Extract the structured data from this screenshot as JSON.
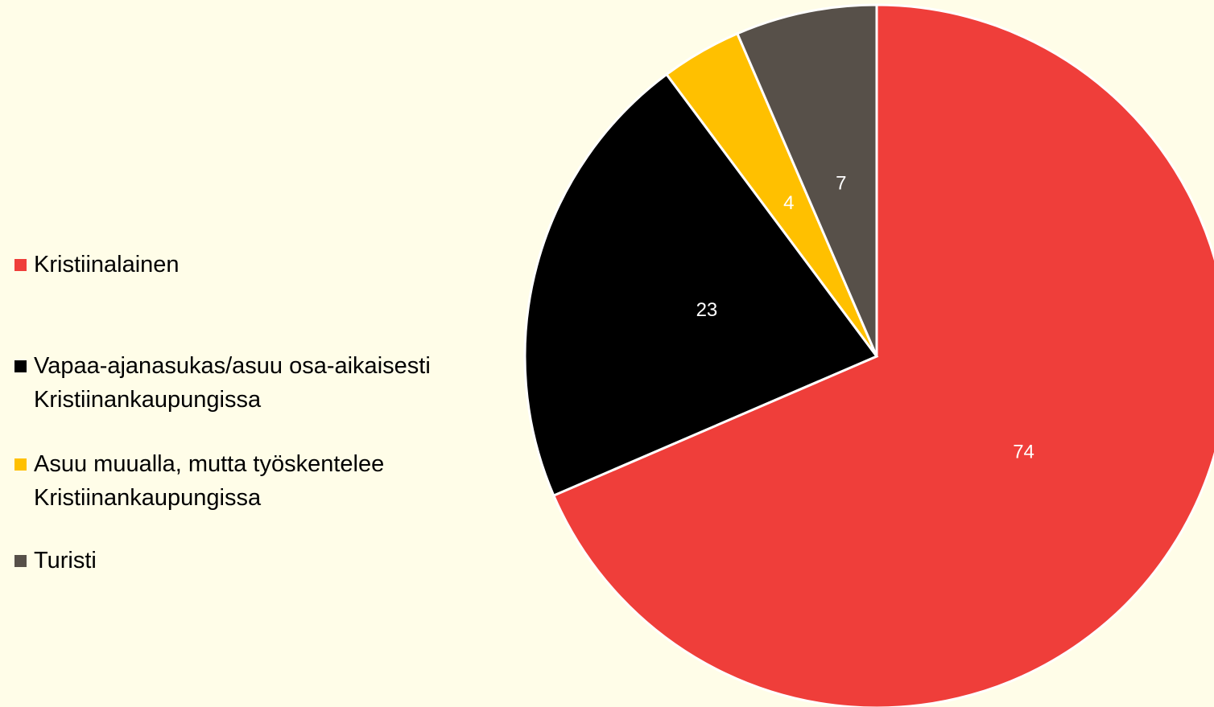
{
  "chart_data": {
    "type": "pie",
    "categories": [
      "Kristiinalainen",
      "Vapaa-ajanasukas/asuu osa-aikaisesti Kristiinankaupungissa",
      "Asuu muualla, mutta työskentelee Kristiinankaupungissa",
      "Turisti"
    ],
    "values": [
      74,
      23,
      4,
      7
    ],
    "colors": [
      "#ef3e3a",
      "#000000",
      "#ffc000",
      "#575049"
    ],
    "legend": "left"
  }
}
